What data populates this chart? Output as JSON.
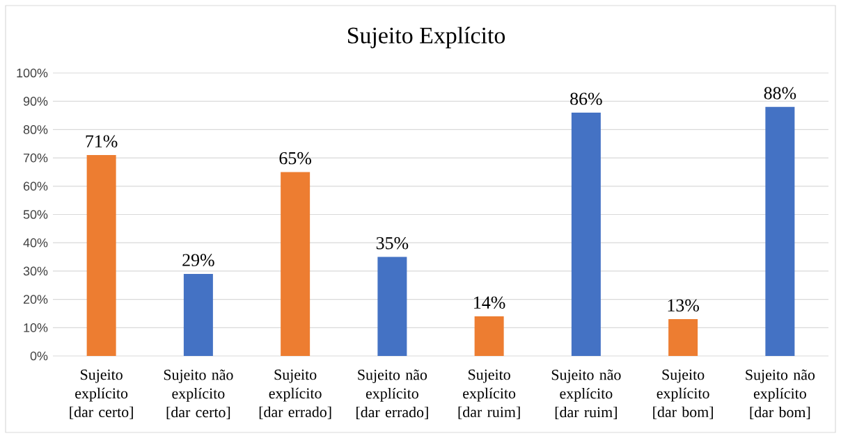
{
  "chart_data": {
    "type": "bar",
    "title": "Sujeito Explícito",
    "categories": [
      "Sujeito explícito [dar certo]",
      "Sujeito não explícito [dar certo]",
      "Sujeito explícito [dar errado]",
      "Sujeito não explícito [dar errado]",
      "Sujeito explícito [dar ruim]",
      "Sujeito não explícito [dar ruim]",
      "Sujeito explícito [dar bom]",
      "Sujeito não explícito [dar bom]"
    ],
    "values": [
      71,
      29,
      65,
      35,
      14,
      86,
      13,
      88
    ],
    "value_labels": [
      "71%",
      "29%",
      "65%",
      "35%",
      "14%",
      "86%",
      "13%",
      "88%"
    ],
    "colors": [
      "#ed7d31",
      "#4472c4",
      "#ed7d31",
      "#4472c4",
      "#ed7d31",
      "#4472c4",
      "#ed7d31",
      "#4472c4"
    ],
    "ylim": [
      0,
      100
    ],
    "yticks": [
      {
        "value": 0,
        "label": "0%"
      },
      {
        "value": 10,
        "label": "10%"
      },
      {
        "value": 20,
        "label": "20%"
      },
      {
        "value": 30,
        "label": "30%"
      },
      {
        "value": 40,
        "label": "40%"
      },
      {
        "value": 50,
        "label": "50%"
      },
      {
        "value": 60,
        "label": "60%"
      },
      {
        "value": 70,
        "label": "70%"
      },
      {
        "value": 80,
        "label": "80%"
      },
      {
        "value": 90,
        "label": "90%"
      },
      {
        "value": 100,
        "label": "100%"
      }
    ],
    "grid": "y"
  }
}
